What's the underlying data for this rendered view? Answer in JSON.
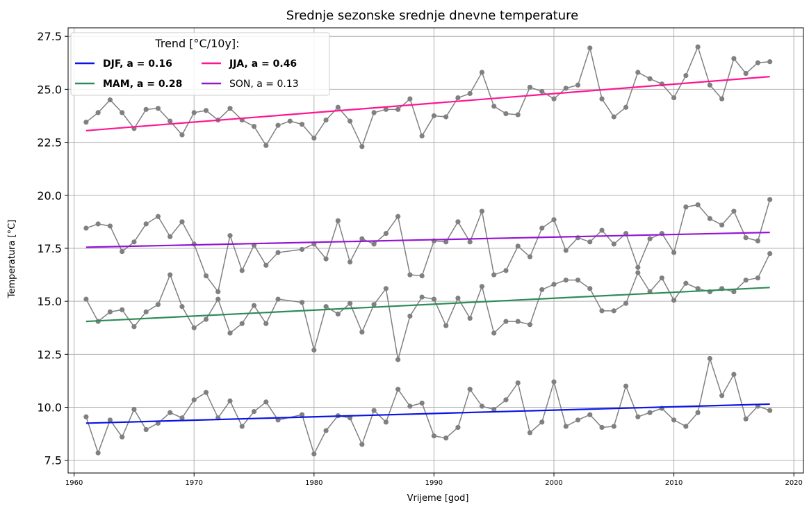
{
  "chart_data": {
    "type": "line",
    "title": "Srednje sezonske srednje dnevne temperature",
    "xlabel": "Vrijeme [god]",
    "ylabel": "Temperatura [°C]",
    "xlim": [
      1959.5,
      2020.8
    ],
    "ylim": [
      6.9,
      27.9
    ],
    "x_ticks": [
      1960,
      1970,
      1980,
      1990,
      2000,
      2010,
      2020
    ],
    "y_ticks": [
      7.5,
      10.0,
      12.5,
      15.0,
      17.5,
      20.0,
      22.5,
      25.0,
      27.5
    ],
    "grid": true,
    "legend": {
      "title": "Trend [°C/10y]:",
      "placement": "top-left",
      "entries": [
        {
          "label": "DJF, a = 0.16",
          "color": "#0a14e6",
          "bold": true
        },
        {
          "label": "MAM, a = 0.28",
          "color": "#2e8b57",
          "bold": true
        },
        {
          "label": "JJA, a = 0.46",
          "color": "#ff1493",
          "bold": true
        },
        {
          "label": "SON, a = 0.13",
          "color": "#9414d3",
          "bold": false
        }
      ]
    },
    "observation_color": "#808080",
    "series": [
      {
        "season": "DJF",
        "x": [
          1961,
          1962,
          1963,
          1964,
          1965,
          1966,
          1967,
          1968,
          1969,
          1970,
          1971,
          1972,
          1973,
          1974,
          1975,
          1976,
          1977,
          1979,
          1980,
          1981,
          1982,
          1983,
          1984,
          1985,
          1986,
          1987,
          1988,
          1989,
          1990,
          1991,
          1992,
          1993,
          1994,
          1995,
          1996,
          1997,
          1998,
          1999,
          2000,
          2001,
          2002,
          2003,
          2004,
          2005,
          2006,
          2007,
          2008,
          2009,
          2010,
          2011,
          2012,
          2013,
          2014,
          2015,
          2016,
          2017,
          2018
        ],
        "values": [
          9.55,
          7.85,
          9.4,
          8.6,
          9.9,
          8.95,
          9.25,
          9.75,
          9.5,
          10.35,
          10.7,
          9.5,
          10.3,
          9.1,
          9.8,
          10.25,
          9.4,
          9.65,
          7.8,
          8.9,
          9.6,
          9.5,
          8.25,
          9.85,
          9.3,
          10.85,
          10.05,
          10.2,
          8.65,
          8.55,
          9.05,
          10.85,
          10.05,
          9.9,
          10.35,
          11.15,
          8.8,
          9.3,
          11.2,
          9.1,
          9.4,
          9.65,
          9.05,
          9.1,
          11.0,
          9.55,
          9.75,
          9.95,
          9.4,
          9.1,
          9.75,
          12.3,
          10.55,
          11.55,
          9.45,
          10.05,
          9.85
        ],
        "trend": [
          9.25,
          10.15
        ]
      },
      {
        "season": "MAM",
        "x": [
          1961,
          1962,
          1963,
          1964,
          1965,
          1966,
          1967,
          1968,
          1969,
          1970,
          1971,
          1972,
          1973,
          1974,
          1975,
          1976,
          1977,
          1979,
          1980,
          1981,
          1982,
          1983,
          1984,
          1985,
          1986,
          1987,
          1988,
          1989,
          1990,
          1991,
          1992,
          1993,
          1994,
          1995,
          1996,
          1997,
          1998,
          1999,
          2000,
          2001,
          2002,
          2003,
          2004,
          2005,
          2006,
          2007,
          2008,
          2009,
          2010,
          2011,
          2012,
          2013,
          2014,
          2015,
          2016,
          2017,
          2018
        ],
        "values": [
          15.1,
          14.05,
          14.5,
          14.6,
          13.8,
          14.5,
          14.85,
          16.25,
          14.75,
          13.75,
          14.15,
          15.1,
          13.5,
          13.95,
          14.8,
          13.95,
          15.1,
          14.95,
          12.7,
          14.75,
          14.4,
          14.9,
          13.55,
          14.85,
          15.6,
          12.25,
          14.3,
          15.2,
          15.1,
          13.85,
          15.15,
          14.2,
          15.7,
          13.5,
          14.05,
          14.05,
          13.9,
          15.55,
          15.8,
          16.0,
          16.0,
          15.6,
          14.55,
          14.55,
          14.9,
          16.35,
          15.45,
          16.1,
          15.05,
          15.85,
          15.6,
          15.45,
          15.6,
          15.45,
          16.0,
          16.1,
          17.25
        ],
        "trend": [
          14.05,
          15.65
        ]
      },
      {
        "season": "JJA",
        "x": [
          1961,
          1962,
          1963,
          1964,
          1965,
          1966,
          1967,
          1968,
          1969,
          1970,
          1971,
          1972,
          1973,
          1974,
          1975,
          1976,
          1977,
          1978,
          1979,
          1980,
          1981,
          1982,
          1983,
          1984,
          1985,
          1986,
          1987,
          1988,
          1989,
          1990,
          1991,
          1992,
          1993,
          1994,
          1995,
          1996,
          1997,
          1998,
          1999,
          2000,
          2001,
          2002,
          2003,
          2004,
          2005,
          2006,
          2007,
          2008,
          2009,
          2010,
          2011,
          2012,
          2013,
          2014,
          2015,
          2016,
          2017,
          2018
        ],
        "values": [
          23.45,
          23.9,
          24.5,
          23.9,
          23.15,
          24.05,
          24.1,
          23.5,
          22.85,
          23.9,
          24.0,
          23.55,
          24.1,
          23.55,
          23.25,
          22.35,
          23.3,
          23.5,
          23.35,
          22.7,
          23.55,
          24.15,
          23.5,
          22.3,
          23.9,
          24.05,
          24.05,
          24.55,
          22.8,
          23.75,
          23.7,
          24.6,
          24.8,
          25.8,
          24.2,
          23.85,
          23.8,
          25.1,
          24.9,
          24.55,
          25.05,
          25.2,
          26.95,
          24.55,
          23.7,
          24.15,
          25.8,
          25.5,
          25.25,
          24.6,
          25.65,
          27.0,
          25.2,
          24.55,
          26.45,
          25.75,
          26.25,
          26.3
        ],
        "trend": [
          23.05,
          25.6
        ]
      },
      {
        "season": "SON",
        "x": [
          1961,
          1962,
          1963,
          1964,
          1965,
          1966,
          1967,
          1968,
          1969,
          1970,
          1971,
          1972,
          1973,
          1974,
          1975,
          1976,
          1977,
          1979,
          1980,
          1981,
          1982,
          1983,
          1984,
          1985,
          1986,
          1987,
          1988,
          1989,
          1990,
          1991,
          1992,
          1993,
          1994,
          1995,
          1996,
          1997,
          1998,
          1999,
          2000,
          2001,
          2002,
          2003,
          2004,
          2005,
          2006,
          2007,
          2008,
          2009,
          2010,
          2011,
          2012,
          2013,
          2014,
          2015,
          2016,
          2017,
          2018
        ],
        "values": [
          18.45,
          18.65,
          18.55,
          17.35,
          17.8,
          18.65,
          19.0,
          18.05,
          18.75,
          17.7,
          16.2,
          15.45,
          18.1,
          16.45,
          17.65,
          16.7,
          17.3,
          17.45,
          17.7,
          17.0,
          18.8,
          16.85,
          17.95,
          17.7,
          18.2,
          19.0,
          16.25,
          16.2,
          17.85,
          17.8,
          18.75,
          17.8,
          19.25,
          16.25,
          16.45,
          17.6,
          17.1,
          18.45,
          18.85,
          17.4,
          18.0,
          17.8,
          18.35,
          17.7,
          18.2,
          16.6,
          17.95,
          18.2,
          17.3,
          19.45,
          19.55,
          18.9,
          18.6,
          19.25,
          18.0,
          17.85,
          19.8
        ],
        "trend": [
          17.55,
          18.25
        ]
      }
    ]
  }
}
